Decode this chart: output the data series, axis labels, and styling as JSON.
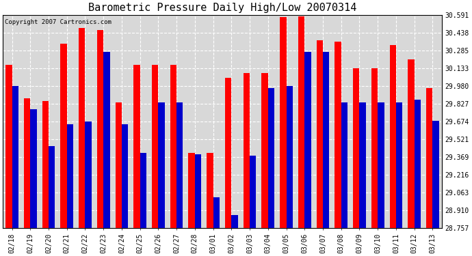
{
  "title": "Barometric Pressure Daily High/Low 20070314",
  "copyright": "Copyright 2007 Cartronics.com",
  "dates": [
    "02/18",
    "02/19",
    "02/20",
    "02/21",
    "02/22",
    "02/23",
    "02/24",
    "02/25",
    "02/26",
    "02/27",
    "02/28",
    "03/01",
    "03/02",
    "03/03",
    "03/04",
    "03/05",
    "03/06",
    "03/07",
    "03/08",
    "03/09",
    "03/10",
    "03/11",
    "03/12",
    "03/13"
  ],
  "highs": [
    30.16,
    29.87,
    29.85,
    30.34,
    30.48,
    30.46,
    29.84,
    30.16,
    30.16,
    30.16,
    29.4,
    29.4,
    30.05,
    30.09,
    30.09,
    30.57,
    30.58,
    30.37,
    30.36,
    30.13,
    30.13,
    30.33,
    30.21,
    29.96
  ],
  "lows": [
    29.98,
    29.78,
    29.46,
    29.65,
    29.67,
    30.27,
    29.65,
    29.4,
    29.84,
    29.84,
    29.39,
    29.02,
    28.87,
    29.38,
    29.96,
    29.98,
    30.27,
    30.27,
    29.84,
    29.84,
    29.84,
    29.84,
    29.86,
    29.68
  ],
  "ymin": 28.757,
  "ymax": 30.591,
  "yticks": [
    28.757,
    28.91,
    29.063,
    29.216,
    29.369,
    29.521,
    29.674,
    29.827,
    29.98,
    30.133,
    30.285,
    30.438,
    30.591
  ],
  "bar_width": 0.35,
  "high_color": "#ff0000",
  "low_color": "#0000cc",
  "bg_color": "#ffffff",
  "plot_bg_color": "#d8d8d8",
  "grid_color": "#ffffff",
  "title_fontsize": 11,
  "tick_fontsize": 7,
  "copyright_fontsize": 6.5
}
